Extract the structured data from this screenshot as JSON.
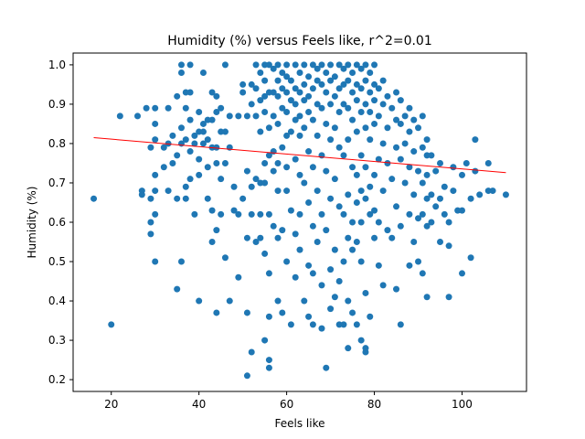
{
  "chart_data": {
    "type": "scatter",
    "title": "Humidity (%) versus Feels like, r^2=0.01",
    "xlabel": "Feels like",
    "ylabel": "Humidity (%)",
    "xlim": [
      11.3,
      114.7
    ],
    "ylim": [
      0.17,
      1.03
    ],
    "xticks": [
      20,
      40,
      60,
      80,
      100
    ],
    "xtick_labels": [
      "20",
      "40",
      "60",
      "80",
      "100"
    ],
    "yticks": [
      0.2,
      0.3,
      0.4,
      0.5,
      0.6,
      0.7,
      0.8,
      0.9,
      1.0
    ],
    "ytick_labels": [
      "0.2",
      "0.3",
      "0.4",
      "0.5",
      "0.6",
      "0.7",
      "0.8",
      "0.9",
      "1.0"
    ],
    "grid": false,
    "point_color": "#1f77b4",
    "regression": {
      "color": "#ff0000",
      "x": [
        16,
        110
      ],
      "y": [
        0.815,
        0.726
      ]
    },
    "points": [
      [
        16,
        0.66
      ],
      [
        20,
        0.34
      ],
      [
        22,
        0.87
      ],
      [
        26,
        0.87
      ],
      [
        27,
        0.68
      ],
      [
        27,
        0.67
      ],
      [
        28,
        0.89
      ],
      [
        29,
        0.79
      ],
      [
        29,
        0.66
      ],
      [
        29,
        0.6
      ],
      [
        29,
        0.57
      ],
      [
        30,
        0.89
      ],
      [
        30,
        0.85
      ],
      [
        30,
        0.81
      ],
      [
        30,
        0.72
      ],
      [
        30,
        0.68
      ],
      [
        30,
        0.62
      ],
      [
        30,
        0.5
      ],
      [
        32,
        0.79
      ],
      [
        32,
        0.74
      ],
      [
        33,
        0.89
      ],
      [
        33,
        0.8
      ],
      [
        33,
        0.68
      ],
      [
        34,
        0.82
      ],
      [
        34,
        0.75
      ],
      [
        35,
        0.92
      ],
      [
        35,
        0.77
      ],
      [
        35,
        0.66
      ],
      [
        35,
        0.43
      ],
      [
        36,
        1.0
      ],
      [
        36,
        0.98
      ],
      [
        36,
        0.84
      ],
      [
        36,
        0.8
      ],
      [
        36,
        0.5
      ],
      [
        37,
        0.93
      ],
      [
        37,
        0.89
      ],
      [
        37,
        0.81
      ],
      [
        37,
        0.69
      ],
      [
        37,
        0.66
      ],
      [
        38,
        0.93
      ],
      [
        38,
        1.0
      ],
      [
        38,
        0.86
      ],
      [
        38,
        0.78
      ],
      [
        38,
        0.71
      ],
      [
        39,
        0.82
      ],
      [
        39,
        0.8
      ],
      [
        39,
        0.62
      ],
      [
        40,
        0.88
      ],
      [
        40,
        0.83
      ],
      [
        40,
        0.76
      ],
      [
        40,
        0.4
      ],
      [
        40,
        0.72
      ],
      [
        41,
        0.98
      ],
      [
        41,
        0.85
      ],
      [
        41,
        0.83
      ],
      [
        41,
        0.8
      ],
      [
        42,
        0.86
      ],
      [
        42,
        0.81
      ],
      [
        42,
        0.74
      ],
      [
        42,
        0.66
      ],
      [
        43,
        0.93
      ],
      [
        43,
        0.86
      ],
      [
        43,
        0.79
      ],
      [
        43,
        0.63
      ],
      [
        43,
        0.55
      ],
      [
        44,
        0.92
      ],
      [
        44,
        0.88
      ],
      [
        44,
        0.79
      ],
      [
        44,
        0.75
      ],
      [
        44,
        0.58
      ],
      [
        44,
        0.37
      ],
      [
        45,
        0.89
      ],
      [
        45,
        0.83
      ],
      [
        45,
        0.71
      ],
      [
        45,
        0.62
      ],
      [
        46,
        1.0
      ],
      [
        46,
        0.83
      ],
      [
        46,
        0.75
      ],
      [
        46,
        0.51
      ],
      [
        47,
        0.87
      ],
      [
        47,
        0.79
      ],
      [
        47,
        0.4
      ],
      [
        48,
        0.69
      ],
      [
        48,
        0.63
      ],
      [
        49,
        0.87
      ],
      [
        49,
        0.62
      ],
      [
        49,
        0.46
      ],
      [
        50,
        0.95
      ],
      [
        50,
        0.93
      ],
      [
        50,
        0.66
      ],
      [
        51,
        0.87
      ],
      [
        51,
        0.73
      ],
      [
        51,
        0.56
      ],
      [
        51,
        0.37
      ],
      [
        51,
        0.21
      ],
      [
        52,
        0.95
      ],
      [
        52,
        0.9
      ],
      [
        52,
        0.69
      ],
      [
        52,
        0.62
      ],
      [
        52,
        0.27
      ],
      [
        53,
        1.0
      ],
      [
        53,
        0.94
      ],
      [
        53,
        0.87
      ],
      [
        53,
        0.71
      ],
      [
        53,
        0.55
      ],
      [
        54,
        0.98
      ],
      [
        54,
        0.91
      ],
      [
        54,
        0.83
      ],
      [
        54,
        0.7
      ],
      [
        54,
        0.62
      ],
      [
        54,
        0.56
      ],
      [
        55,
        1.0
      ],
      [
        55,
        0.96
      ],
      [
        55,
        0.92
      ],
      [
        55,
        0.88
      ],
      [
        55,
        0.75
      ],
      [
        55,
        0.7
      ],
      [
        55,
        0.52
      ],
      [
        55,
        0.3
      ],
      [
        56,
        1.0
      ],
      [
        56,
        0.93
      ],
      [
        56,
        0.84
      ],
      [
        56,
        0.77
      ],
      [
        56,
        0.62
      ],
      [
        56,
        0.47
      ],
      [
        56,
        0.36
      ],
      [
        56,
        0.25
      ],
      [
        56,
        0.23
      ],
      [
        57,
        0.99
      ],
      [
        57,
        0.93
      ],
      [
        57,
        0.87
      ],
      [
        57,
        0.78
      ],
      [
        57,
        0.73
      ],
      [
        57,
        0.59
      ],
      [
        58,
        1.0
      ],
      [
        58,
        0.96
      ],
      [
        58,
        0.92
      ],
      [
        58,
        0.85
      ],
      [
        58,
        0.75
      ],
      [
        58,
        0.68
      ],
      [
        58,
        0.56
      ],
      [
        58,
        0.4
      ],
      [
        59,
        0.98
      ],
      [
        59,
        0.94
      ],
      [
        59,
        0.89
      ],
      [
        59,
        0.79
      ],
      [
        59,
        0.58
      ],
      [
        59,
        0.37
      ],
      [
        60,
        1.0
      ],
      [
        60,
        0.97
      ],
      [
        60,
        0.93
      ],
      [
        60,
        0.88
      ],
      [
        60,
        0.82
      ],
      [
        60,
        0.74
      ],
      [
        60,
        0.68
      ],
      [
        60,
        0.5
      ],
      [
        61,
        0.96
      ],
      [
        61,
        0.91
      ],
      [
        61,
        0.83
      ],
      [
        61,
        0.63
      ],
      [
        61,
        0.34
      ],
      [
        62,
        1.0
      ],
      [
        62,
        0.94
      ],
      [
        62,
        0.9
      ],
      [
        62,
        0.86
      ],
      [
        62,
        0.76
      ],
      [
        62,
        0.57
      ],
      [
        62,
        0.46
      ],
      [
        63,
        0.98
      ],
      [
        63,
        0.93
      ],
      [
        63,
        0.87
      ],
      [
        63,
        0.82
      ],
      [
        63,
        0.72
      ],
      [
        63,
        0.62
      ],
      [
        63,
        0.53
      ],
      [
        64,
        1.0
      ],
      [
        64,
        0.95
      ],
      [
        64,
        0.91
      ],
      [
        64,
        0.84
      ],
      [
        64,
        0.7
      ],
      [
        64,
        0.4
      ],
      [
        65,
        0.97
      ],
      [
        65,
        0.92
      ],
      [
        65,
        0.88
      ],
      [
        65,
        0.78
      ],
      [
        65,
        0.65
      ],
      [
        65,
        0.49
      ],
      [
        65,
        0.36
      ],
      [
        66,
        1.0
      ],
      [
        66,
        0.94
      ],
      [
        66,
        0.86
      ],
      [
        66,
        0.74
      ],
      [
        66,
        0.59
      ],
      [
        66,
        0.47
      ],
      [
        66,
        0.34
      ],
      [
        67,
        0.99
      ],
      [
        67,
        0.96
      ],
      [
        67,
        0.9
      ],
      [
        67,
        0.82
      ],
      [
        67,
        0.68
      ],
      [
        67,
        0.55
      ],
      [
        68,
        1.0
      ],
      [
        68,
        0.95
      ],
      [
        68,
        0.89
      ],
      [
        68,
        0.77
      ],
      [
        68,
        0.62
      ],
      [
        68,
        0.44
      ],
      [
        68,
        0.33
      ],
      [
        69,
        0.98
      ],
      [
        69,
        0.93
      ],
      [
        69,
        0.85
      ],
      [
        69,
        0.73
      ],
      [
        69,
        0.58
      ],
      [
        69,
        0.23
      ],
      [
        70,
        1.0
      ],
      [
        70,
        0.96
      ],
      [
        70,
        0.9
      ],
      [
        70,
        0.81
      ],
      [
        70,
        0.66
      ],
      [
        70,
        0.48
      ],
      [
        70,
        0.38
      ],
      [
        71,
        0.97
      ],
      [
        71,
        0.92
      ],
      [
        71,
        0.84
      ],
      [
        71,
        0.71
      ],
      [
        71,
        0.53
      ],
      [
        71,
        0.41
      ],
      [
        72,
        1.0
      ],
      [
        72,
        0.94
      ],
      [
        72,
        0.88
      ],
      [
        72,
        0.79
      ],
      [
        72,
        0.64
      ],
      [
        72,
        0.45
      ],
      [
        72,
        0.34
      ],
      [
        73,
        0.99
      ],
      [
        73,
        0.95
      ],
      [
        73,
        0.9
      ],
      [
        73,
        0.77
      ],
      [
        73,
        0.62
      ],
      [
        73,
        0.5
      ],
      [
        73,
        0.34
      ],
      [
        74,
        1.0
      ],
      [
        74,
        0.96
      ],
      [
        74,
        0.89
      ],
      [
        74,
        0.81
      ],
      [
        74,
        0.67
      ],
      [
        74,
        0.56
      ],
      [
        74,
        0.4
      ],
      [
        74,
        0.28
      ],
      [
        75,
        0.98
      ],
      [
        75,
        0.93
      ],
      [
        75,
        0.86
      ],
      [
        75,
        0.74
      ],
      [
        75,
        0.6
      ],
      [
        75,
        0.53
      ],
      [
        75,
        0.37
      ],
      [
        76,
        1.0
      ],
      [
        76,
        0.95
      ],
      [
        76,
        0.91
      ],
      [
        76,
        0.83
      ],
      [
        76,
        0.72
      ],
      [
        76,
        0.65
      ],
      [
        76,
        0.55
      ],
      [
        76,
        0.34
      ],
      [
        77,
        0.99
      ],
      [
        77,
        0.94
      ],
      [
        77,
        0.88
      ],
      [
        77,
        0.77
      ],
      [
        77,
        0.68
      ],
      [
        77,
        0.6
      ],
      [
        77,
        0.5
      ],
      [
        77,
        0.3
      ],
      [
        78,
        1.0
      ],
      [
        78,
        0.96
      ],
      [
        78,
        0.9
      ],
      [
        78,
        0.84
      ],
      [
        78,
        0.74
      ],
      [
        78,
        0.66
      ],
      [
        78,
        0.42
      ],
      [
        78,
        0.28
      ],
      [
        78,
        0.27
      ],
      [
        79,
        0.98
      ],
      [
        79,
        0.93
      ],
      [
        79,
        0.88
      ],
      [
        79,
        0.81
      ],
      [
        79,
        0.69
      ],
      [
        79,
        0.62
      ],
      [
        79,
        0.36
      ],
      [
        80,
        1.0
      ],
      [
        80,
        0.95
      ],
      [
        80,
        0.91
      ],
      [
        80,
        0.85
      ],
      [
        80,
        0.72
      ],
      [
        80,
        0.63
      ],
      [
        80,
        0.56
      ],
      [
        81,
        0.94
      ],
      [
        81,
        0.87
      ],
      [
        81,
        0.76
      ],
      [
        81,
        0.6
      ],
      [
        81,
        0.49
      ],
      [
        82,
        0.96
      ],
      [
        82,
        0.9
      ],
      [
        82,
        0.8
      ],
      [
        82,
        0.68
      ],
      [
        82,
        0.44
      ],
      [
        83,
        0.92
      ],
      [
        83,
        0.84
      ],
      [
        83,
        0.75
      ],
      [
        83,
        0.58
      ],
      [
        84,
        0.89
      ],
      [
        84,
        0.71
      ],
      [
        84,
        0.56
      ],
      [
        85,
        0.93
      ],
      [
        85,
        0.86
      ],
      [
        85,
        0.79
      ],
      [
        85,
        0.64
      ],
      [
        85,
        0.43
      ],
      [
        86,
        0.91
      ],
      [
        86,
        0.85
      ],
      [
        86,
        0.76
      ],
      [
        86,
        0.59
      ],
      [
        86,
        0.34
      ],
      [
        87,
        0.87
      ],
      [
        87,
        0.8
      ],
      [
        87,
        0.7
      ],
      [
        88,
        0.89
      ],
      [
        88,
        0.83
      ],
      [
        88,
        0.74
      ],
      [
        88,
        0.62
      ],
      [
        88,
        0.49
      ],
      [
        89,
        0.86
      ],
      [
        89,
        0.78
      ],
      [
        89,
        0.67
      ],
      [
        89,
        0.55
      ],
      [
        90,
        0.84
      ],
      [
        90,
        0.73
      ],
      [
        90,
        0.61
      ],
      [
        90,
        0.5
      ],
      [
        91,
        0.87
      ],
      [
        91,
        0.79
      ],
      [
        91,
        0.7
      ],
      [
        91,
        0.62
      ],
      [
        91,
        0.47
      ],
      [
        92,
        0.81
      ],
      [
        92,
        0.77
      ],
      [
        92,
        0.72
      ],
      [
        92,
        0.66
      ],
      [
        92,
        0.59
      ],
      [
        92,
        0.41
      ],
      [
        93,
        0.77
      ],
      [
        93,
        0.67
      ],
      [
        93,
        0.6
      ],
      [
        94,
        0.73
      ],
      [
        94,
        0.64
      ],
      [
        95,
        0.75
      ],
      [
        95,
        0.66
      ],
      [
        95,
        0.55
      ],
      [
        96,
        0.69
      ],
      [
        96,
        0.62
      ],
      [
        97,
        0.6
      ],
      [
        97,
        0.54
      ],
      [
        97,
        0.41
      ],
      [
        98,
        0.74
      ],
      [
        98,
        0.68
      ],
      [
        99,
        0.63
      ],
      [
        100,
        0.72
      ],
      [
        100,
        0.63
      ],
      [
        100,
        0.47
      ],
      [
        101,
        0.75
      ],
      [
        102,
        0.66
      ],
      [
        102,
        0.51
      ],
      [
        103,
        0.81
      ],
      [
        103,
        0.73
      ],
      [
        104,
        0.67
      ],
      [
        106,
        0.75
      ],
      [
        106,
        0.68
      ],
      [
        107,
        0.68
      ],
      [
        110,
        0.67
      ]
    ]
  }
}
